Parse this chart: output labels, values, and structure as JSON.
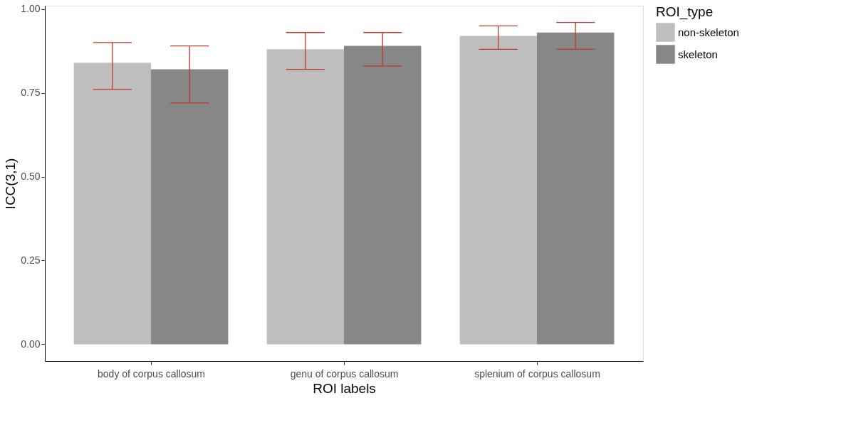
{
  "chart_data": {
    "type": "bar",
    "xlabel": "ROI labels",
    "ylabel": "ICC(3,1)",
    "legend_title": "ROI_type",
    "legend": "right",
    "grid": false,
    "categories": [
      "body of corpus callosum",
      "genu of corpus callosum",
      "splenium of corpus callosum"
    ],
    "ylim": [
      -0.05,
      1.01
    ],
    "yticks": [
      {
        "value": 0,
        "label": "0.00"
      },
      {
        "value": 0.25,
        "label": "0.25"
      },
      {
        "value": 0.5,
        "label": "0.50"
      },
      {
        "value": 0.75,
        "label": "0.75"
      },
      {
        "value": 1,
        "label": "1.00"
      }
    ],
    "series": [
      {
        "name": "non-skeleton",
        "color": "#bebebe",
        "values": [
          0.84,
          0.88,
          0.92
        ],
        "errors": [
          [
            0.76,
            0.9
          ],
          [
            0.82,
            0.93
          ],
          [
            0.88,
            0.95
          ]
        ]
      },
      {
        "name": "skeleton",
        "color": "#878787",
        "values": [
          0.82,
          0.89,
          0.93
        ],
        "errors": [
          [
            0.72,
            0.89
          ],
          [
            0.83,
            0.93
          ],
          [
            0.88,
            0.96
          ]
        ]
      }
    ]
  }
}
